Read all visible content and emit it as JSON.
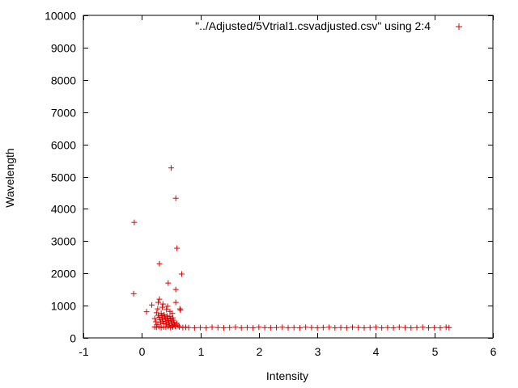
{
  "chart_data": {
    "type": "scatter",
    "xlabel": "Intensity",
    "ylabel": "Wavelength",
    "xlim": [
      -1,
      6
    ],
    "ylim": [
      0,
      10000
    ],
    "xticks": [
      -1,
      0,
      1,
      2,
      3,
      4,
      5,
      6
    ],
    "yticks": [
      0,
      1000,
      2000,
      3000,
      4000,
      5000,
      6000,
      7000,
      8000,
      9000,
      10000
    ],
    "grid": false,
    "legend_position": "top-right",
    "marker": "plus",
    "series": [
      {
        "name": "\"../Adjusted/5Vtrial1.csvadjusted.csv\" using 2:4",
        "color": "#dd0000",
        "points": [
          [
            -0.13,
            3580
          ],
          [
            -0.14,
            1370
          ],
          [
            0.08,
            810
          ],
          [
            0.17,
            1020
          ],
          [
            0.3,
            2300
          ],
          [
            0.3,
            1200
          ],
          [
            0.28,
            1100
          ],
          [
            0.45,
            1700
          ],
          [
            0.5,
            5270
          ],
          [
            0.58,
            4330
          ],
          [
            0.6,
            2780
          ],
          [
            0.58,
            1500
          ],
          [
            0.68,
            1980
          ],
          [
            0.58,
            1100
          ],
          [
            0.65,
            900
          ],
          [
            0.66,
            860
          ],
          [
            0.35,
            950
          ],
          [
            0.42,
            880
          ],
          [
            0.48,
            820
          ],
          [
            0.25,
            780
          ],
          [
            0.22,
            600
          ],
          [
            0.24,
            500
          ],
          [
            0.26,
            420
          ],
          [
            0.28,
            700
          ],
          [
            0.3,
            640
          ],
          [
            0.31,
            560
          ],
          [
            0.32,
            480
          ],
          [
            0.33,
            760
          ],
          [
            0.34,
            690
          ],
          [
            0.35,
            600
          ],
          [
            0.36,
            520
          ],
          [
            0.37,
            440
          ],
          [
            0.38,
            720
          ],
          [
            0.39,
            650
          ],
          [
            0.4,
            580
          ],
          [
            0.41,
            500
          ],
          [
            0.42,
            430
          ],
          [
            0.43,
            680
          ],
          [
            0.44,
            610
          ],
          [
            0.45,
            540
          ],
          [
            0.46,
            470
          ],
          [
            0.47,
            400
          ],
          [
            0.48,
            660
          ],
          [
            0.49,
            590
          ],
          [
            0.5,
            520
          ],
          [
            0.51,
            450
          ],
          [
            0.52,
            380
          ],
          [
            0.53,
            620
          ],
          [
            0.54,
            550
          ],
          [
            0.55,
            480
          ],
          [
            0.56,
            410
          ],
          [
            0.57,
            360
          ],
          [
            0.22,
            340
          ],
          [
            0.25,
            330
          ],
          [
            0.29,
            350
          ],
          [
            0.33,
            320
          ],
          [
            0.37,
            340
          ],
          [
            0.41,
            330
          ],
          [
            0.45,
            350
          ],
          [
            0.49,
            320
          ],
          [
            0.53,
            340
          ],
          [
            0.27,
            900
          ],
          [
            0.36,
            1050
          ],
          [
            0.44,
            980
          ],
          [
            0.52,
            760
          ],
          [
            0.6,
            450
          ],
          [
            0.62,
            380
          ],
          [
            0.64,
            340
          ],
          [
            0.7,
            320
          ],
          [
            0.75,
            330
          ],
          [
            0.8,
            320
          ],
          [
            0.9,
            310
          ],
          [
            1.0,
            320
          ],
          [
            1.1,
            310
          ],
          [
            1.2,
            330
          ],
          [
            1.3,
            320
          ],
          [
            1.4,
            310
          ],
          [
            1.5,
            320
          ],
          [
            1.6,
            330
          ],
          [
            1.7,
            310
          ],
          [
            1.8,
            320
          ],
          [
            1.9,
            310
          ],
          [
            2.0,
            330
          ],
          [
            2.1,
            320
          ],
          [
            2.2,
            310
          ],
          [
            2.3,
            320
          ],
          [
            2.4,
            330
          ],
          [
            2.5,
            310
          ],
          [
            2.6,
            320
          ],
          [
            2.7,
            310
          ],
          [
            2.8,
            330
          ],
          [
            2.9,
            320
          ],
          [
            3.0,
            310
          ],
          [
            3.1,
            320
          ],
          [
            3.2,
            330
          ],
          [
            3.3,
            310
          ],
          [
            3.4,
            320
          ],
          [
            3.5,
            310
          ],
          [
            3.6,
            330
          ],
          [
            3.7,
            320
          ],
          [
            3.8,
            310
          ],
          [
            3.9,
            320
          ],
          [
            4.0,
            330
          ],
          [
            4.1,
            310
          ],
          [
            4.2,
            320
          ],
          [
            4.3,
            310
          ],
          [
            4.4,
            330
          ],
          [
            4.5,
            320
          ],
          [
            4.6,
            310
          ],
          [
            4.7,
            320
          ],
          [
            4.8,
            330
          ],
          [
            4.9,
            310
          ],
          [
            5.0,
            320
          ],
          [
            5.1,
            310
          ],
          [
            5.2,
            330
          ],
          [
            5.25,
            320
          ]
        ]
      }
    ]
  }
}
